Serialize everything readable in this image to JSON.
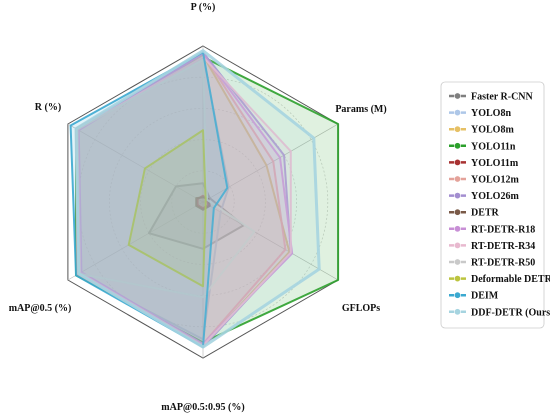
{
  "chart_data": {
    "type": "radar",
    "axes": [
      "P (%)",
      "Params (M)",
      "GFLOPs",
      "mAP@0.5:0.95 (%)",
      "mAP@0.5 (%)",
      "R (%)"
    ],
    "scale": [
      0,
      1
    ],
    "grid": true,
    "legend_position": "right",
    "series": [
      {
        "name": "Faster R-CNN",
        "color": "#7f7f7f",
        "values": [
          0.12,
          0.05,
          0.3,
          0.3,
          0.4,
          0.2
        ]
      },
      {
        "name": "YOLO8n",
        "color": "#aec7e8",
        "values": [
          0.94,
          0.19,
          0.13,
          0.88,
          0.93,
          0.94
        ]
      },
      {
        "name": "YOLO8m",
        "color": "#e6c065",
        "values": [
          0.94,
          0.47,
          0.64,
          0.92,
          0.92,
          0.93
        ]
      },
      {
        "name": "YOLO11n",
        "color": "#2ca02c",
        "values": [
          0.93,
          1.0,
          1.0,
          0.9,
          0.94,
          0.94
        ]
      },
      {
        "name": "YOLO11m",
        "color": "#a83232",
        "values": [
          0.04,
          0.03,
          0.04,
          0.04,
          0.04,
          0.04
        ]
      },
      {
        "name": "YOLO12m",
        "color": "#e4a29a",
        "values": [
          0.95,
          0.52,
          0.61,
          0.91,
          0.93,
          0.94
        ]
      },
      {
        "name": "YOLO26m",
        "color": "#a38ed0",
        "values": [
          0.96,
          0.6,
          0.65,
          0.93,
          0.91,
          0.93
        ]
      },
      {
        "name": "DETR",
        "color": "#7a5a48",
        "values": [
          0.03,
          0.04,
          0.05,
          0.05,
          0.05,
          0.05
        ]
      },
      {
        "name": "RT-DETR-R18",
        "color": "#c88fd6",
        "values": [
          0.95,
          0.57,
          0.66,
          0.91,
          0.9,
          0.92
        ]
      },
      {
        "name": "RT-DETR-R34",
        "color": "#e8b9cf",
        "values": [
          0.93,
          0.65,
          0.65,
          0.92,
          0.91,
          0.93
        ]
      },
      {
        "name": "RT-DETR-R50",
        "color": "#c9c9c9",
        "values": [
          0.91,
          0.03,
          0.38,
          0.61,
          0.92,
          0.93
        ]
      },
      {
        "name": "Deformable DETR",
        "color": "#bcc43f",
        "values": [
          0.46,
          0.02,
          0.02,
          0.54,
          0.55,
          0.43
        ]
      },
      {
        "name": "DEIM",
        "color": "#3ba9d0",
        "values": [
          0.96,
          0.18,
          0.08,
          0.93,
          0.94,
          0.98
        ]
      },
      {
        "name": "DDF-DETR (Ours)",
        "color": "#a6d4e0",
        "values": [
          0.97,
          0.82,
          0.86,
          0.93,
          0.92,
          0.94
        ]
      }
    ]
  }
}
